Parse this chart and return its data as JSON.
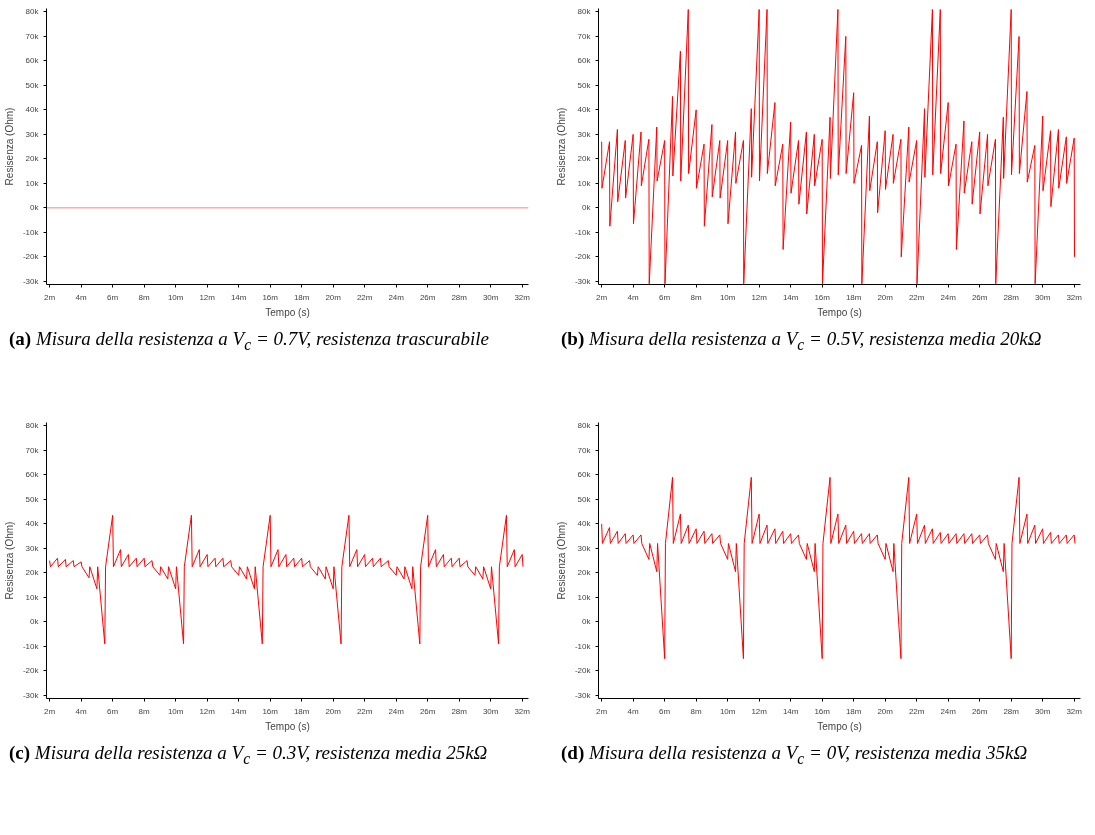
{
  "chart_data": [
    {
      "type": "line",
      "xlabel": "Tempo (s)",
      "ylabel": "Resisenza (Ohm)",
      "annotations": [
        "(a) Misura della resistenza a V$_{c}$ = 0.7V, resistenza trascurabile"
      ],
      "x": [
        1.8,
        32.4
      ],
      "series": [
        {
          "color": "#ff8080",
          "values": [
            0,
            0
          ]
        }
      ],
      "xlim": [
        1.8,
        32.4
      ],
      "ylim": [
        -31300,
        81400
      ],
      "xticks": [
        {
          "value": 2,
          "label": "2m"
        },
        {
          "value": 4,
          "label": "4m"
        },
        {
          "value": 6,
          "label": "6m"
        },
        {
          "value": 8,
          "label": "8m"
        },
        {
          "value": 10,
          "label": "10m"
        },
        {
          "value": 12,
          "label": "12m"
        },
        {
          "value": 14,
          "label": "14m"
        },
        {
          "value": 16,
          "label": "16m"
        },
        {
          "value": 18,
          "label": "18m"
        },
        {
          "value": 20,
          "label": "20m"
        },
        {
          "value": 22,
          "label": "22m"
        },
        {
          "value": 24,
          "label": "24m"
        },
        {
          "value": 26,
          "label": "26m"
        },
        {
          "value": 28,
          "label": "28m"
        },
        {
          "value": 30,
          "label": "30m"
        },
        {
          "value": 32,
          "label": "32m"
        }
      ],
      "yticks": [
        {
          "value": -30000,
          "label": "-30k"
        },
        {
          "value": -20000,
          "label": "-20k"
        },
        {
          "value": -10000,
          "label": "-10k"
        },
        {
          "value": 0,
          "label": "0k"
        },
        {
          "value": 10000,
          "label": "10k"
        },
        {
          "value": 20000,
          "label": "20k"
        },
        {
          "value": 30000,
          "label": "30k"
        },
        {
          "value": 40000,
          "label": "40k"
        },
        {
          "value": 50000,
          "label": "50k"
        },
        {
          "value": 60000,
          "label": "60k"
        },
        {
          "value": 70000,
          "label": "70k"
        },
        {
          "value": 80000,
          "label": "80k"
        }
      ]
    },
    {
      "type": "line",
      "xlabel": "Tempo (s)",
      "ylabel": "Resisenza (Ohm)",
      "annotations": [
        "(b) Misura della resistenza a V$_{c}$ = 0.5V, resistenza media 20kΩ"
      ],
      "x": [
        2,
        2.02,
        2.5,
        2.52,
        3,
        3.02,
        3.5,
        3.52,
        4,
        4.02,
        4.5,
        4.52,
        5,
        5.02,
        5.5,
        5.52,
        6,
        6.02,
        6.5,
        6.52,
        7,
        7.02,
        7.5,
        7.52,
        8,
        8.02,
        8.5,
        8.52,
        9,
        9.02,
        9.5,
        9.52,
        10,
        10.02,
        10.5,
        10.52,
        11,
        11.02,
        11.5,
        11.52,
        12,
        12.02,
        12.5,
        12.52,
        13,
        13.02,
        13.5,
        13.52,
        14,
        14.02,
        14.5,
        14.52,
        15,
        15.02,
        15.5,
        15.52,
        16,
        16.02,
        16.5,
        16.52,
        17,
        17.02,
        17.5,
        17.52,
        18,
        18.02,
        18.5,
        18.52,
        19,
        19.02,
        19.5,
        19.52,
        20,
        20.02,
        20.5,
        20.52,
        21,
        21.02,
        21.5,
        21.52,
        22,
        22.02,
        22.5,
        22.52,
        23,
        23.02,
        23.5,
        23.52,
        24,
        24.02,
        24.5,
        24.52,
        25,
        25.02,
        25.5,
        25.52,
        26,
        26.02,
        26.5,
        26.52,
        27,
        27.02,
        27.5,
        27.52,
        28,
        28.02,
        28.5,
        28.52,
        29,
        29.02,
        29.5,
        29.52,
        30,
        30.02,
        30.5,
        30.52,
        31,
        31.02,
        31.5,
        31.52,
        32,
        32.02
      ],
      "series": [
        {
          "color": "#ff0000",
          "values": [
            27000,
            8000,
            27000,
            -7500,
            32000,
            2500,
            27500,
            4000,
            30000,
            -6500,
            31000,
            9000,
            28000,
            -31000,
            33000,
            11000,
            27500,
            -31000,
            45500,
            13000,
            64000,
            11000,
            81000,
            14000,
            40000,
            8000,
            26000,
            -7500,
            34000,
            4500,
            27500,
            4000,
            27500,
            -6500,
            31000,
            10000,
            27500,
            -31000,
            40500,
            12500,
            81000,
            11000,
            81000,
            14000,
            43000,
            9000,
            26000,
            -17000,
            35000,
            6000,
            27500,
            1500,
            31000,
            -2500,
            30000,
            9000,
            28000,
            -31000,
            37000,
            12000,
            81000,
            13500,
            70000,
            14000,
            47000,
            10000,
            25500,
            -31000,
            37500,
            7000,
            27000,
            -2000,
            31500,
            7500,
            30000,
            10000,
            28000,
            -20000,
            33000,
            10500,
            27500,
            -31000,
            40500,
            12500,
            81000,
            13500,
            81000,
            14000,
            43000,
            9000,
            26000,
            -17000,
            35500,
            6000,
            27000,
            1500,
            31000,
            -2500,
            30000,
            9000,
            28000,
            -31000,
            37000,
            12000,
            81000,
            13500,
            70000,
            14000,
            47500,
            10500,
            25500,
            -31000,
            37500,
            7000,
            31500,
            500,
            32000,
            8000,
            29000,
            10000,
            28500,
            -20000
          ]
        }
      ],
      "xlim": [
        1.8,
        32.4
      ],
      "ylim": [
        -31300,
        81400
      ],
      "xticks": [
        {
          "value": 2,
          "label": "2m"
        },
        {
          "value": 4,
          "label": "4m"
        },
        {
          "value": 6,
          "label": "6m"
        },
        {
          "value": 8,
          "label": "8m"
        },
        {
          "value": 10,
          "label": "10m"
        },
        {
          "value": 12,
          "label": "12m"
        },
        {
          "value": 14,
          "label": "14m"
        },
        {
          "value": 16,
          "label": "16m"
        },
        {
          "value": 18,
          "label": "18m"
        },
        {
          "value": 20,
          "label": "20m"
        },
        {
          "value": 22,
          "label": "22m"
        },
        {
          "value": 24,
          "label": "24m"
        },
        {
          "value": 26,
          "label": "26m"
        },
        {
          "value": 28,
          "label": "28m"
        },
        {
          "value": 30,
          "label": "30m"
        },
        {
          "value": 32,
          "label": "32m"
        }
      ],
      "yticks": [
        {
          "value": -30000,
          "label": "-30k"
        },
        {
          "value": -20000,
          "label": "-20k"
        },
        {
          "value": -10000,
          "label": "-10k"
        },
        {
          "value": 0,
          "label": "0k"
        },
        {
          "value": 10000,
          "label": "10k"
        },
        {
          "value": 20000,
          "label": "20k"
        },
        {
          "value": 30000,
          "label": "30k"
        },
        {
          "value": 40000,
          "label": "40k"
        },
        {
          "value": 50000,
          "label": "50k"
        },
        {
          "value": 60000,
          "label": "60k"
        },
        {
          "value": 70000,
          "label": "70k"
        },
        {
          "value": 80000,
          "label": "80k"
        }
      ]
    },
    {
      "type": "line",
      "xlabel": "Tempo (s)",
      "ylabel": "Resisenza (Ohm)",
      "annotations": [
        "(c) Misura della resistenza a V$_{c}$ = 0.3V, resistenza media 25kΩ"
      ],
      "x": [
        2,
        2.05,
        2.5,
        2.55,
        3,
        3.05,
        3.5,
        3.55,
        4,
        4.05,
        4.5,
        4.55,
        5,
        5.05,
        5.5,
        5.55,
        6,
        6.05,
        6.5,
        6.55,
        7,
        7.05,
        7.5,
        7.55,
        8,
        8.05,
        8.5,
        8.55,
        9,
        9.05,
        9.5,
        9.55,
        10,
        10.05,
        10.5,
        10.55,
        11,
        11.05,
        11.5,
        11.55,
        12,
        12.05,
        12.5,
        12.55,
        13,
        13.05,
        13.5,
        13.55,
        14,
        14.05,
        14.5,
        14.55,
        15,
        15.05,
        15.5,
        15.55,
        16,
        16.05,
        16.5,
        16.55,
        17,
        17.05,
        17.5,
        17.55,
        18,
        18.05,
        18.5,
        18.55,
        19,
        19.05,
        19.5,
        19.55,
        20,
        20.05,
        20.5,
        20.55,
        21,
        21.05,
        21.5,
        21.55,
        22,
        22.05,
        22.5,
        22.55,
        23,
        23.05,
        23.5,
        23.55,
        24,
        24.05,
        24.5,
        24.55,
        25,
        25.05,
        25.5,
        25.55,
        26,
        26.05,
        26.5,
        26.55,
        27,
        27.05,
        27.5,
        27.55,
        28,
        28.05,
        28.5,
        28.55,
        29,
        29.05,
        29.5,
        29.55,
        30,
        30.05,
        30.5,
        30.55,
        31,
        31.05,
        31.5,
        31.55,
        32,
        32.05
      ],
      "series": [
        {
          "color": "#ff0000",
          "values": [
            25000,
            22500,
            26000,
            22500,
            25500,
            22500,
            25000,
            22500,
            24500,
            22500,
            18000,
            22500,
            13500,
            22500,
            -9000,
            22500,
            43500,
            22500,
            29500,
            22500,
            27500,
            22500,
            26000,
            22500,
            26000,
            22500,
            25000,
            22500,
            19000,
            22500,
            17500,
            22500,
            13500,
            22500,
            -9000,
            22500,
            43500,
            22500,
            29500,
            22500,
            27500,
            22500,
            26000,
            22500,
            26000,
            22500,
            25000,
            22500,
            19000,
            22500,
            17500,
            22500,
            13500,
            22500,
            -9000,
            22500,
            43500,
            22500,
            29500,
            22500,
            27500,
            22500,
            26000,
            22500,
            26000,
            22500,
            25000,
            22500,
            19000,
            22500,
            17500,
            22500,
            13500,
            22500,
            -9000,
            22500,
            43500,
            22500,
            29500,
            22500,
            27500,
            22500,
            26000,
            22500,
            26000,
            22500,
            25000,
            22500,
            19000,
            22500,
            17500,
            22500,
            13500,
            22500,
            -9000,
            22500,
            43500,
            22500,
            29500,
            22500,
            27500,
            22500,
            26000,
            22500,
            26000,
            22500,
            25000,
            22500,
            19000,
            22500,
            17500,
            22500,
            13500,
            22500,
            -9000,
            22500,
            43500,
            22500,
            29500,
            22500,
            27500,
            22500
          ]
        }
      ],
      "xlim": [
        1.8,
        32.4
      ],
      "ylim": [
        -31300,
        81400
      ],
      "xticks": [
        {
          "value": 2,
          "label": "2m"
        },
        {
          "value": 4,
          "label": "4m"
        },
        {
          "value": 6,
          "label": "6m"
        },
        {
          "value": 8,
          "label": "8m"
        },
        {
          "value": 10,
          "label": "10m"
        },
        {
          "value": 12,
          "label": "12m"
        },
        {
          "value": 14,
          "label": "14m"
        },
        {
          "value": 16,
          "label": "16m"
        },
        {
          "value": 18,
          "label": "18m"
        },
        {
          "value": 20,
          "label": "20m"
        },
        {
          "value": 22,
          "label": "22m"
        },
        {
          "value": 24,
          "label": "24m"
        },
        {
          "value": 26,
          "label": "26m"
        },
        {
          "value": 28,
          "label": "28m"
        },
        {
          "value": 30,
          "label": "30m"
        },
        {
          "value": 32,
          "label": "32m"
        }
      ],
      "yticks": [
        {
          "value": -30000,
          "label": "-30k"
        },
        {
          "value": -20000,
          "label": "-20k"
        },
        {
          "value": -10000,
          "label": "-10k"
        },
        {
          "value": 0,
          "label": "0k"
        },
        {
          "value": 10000,
          "label": "10k"
        },
        {
          "value": 20000,
          "label": "20k"
        },
        {
          "value": 30000,
          "label": "30k"
        },
        {
          "value": 40000,
          "label": "40k"
        },
        {
          "value": 50000,
          "label": "50k"
        },
        {
          "value": 60000,
          "label": "60k"
        },
        {
          "value": 70000,
          "label": "70k"
        },
        {
          "value": 80000,
          "label": "80k"
        }
      ]
    },
    {
      "type": "line",
      "xlabel": "Tempo (s)",
      "ylabel": "Resisenza (Ohm)",
      "annotations": [
        "(d) Misura della resistenza a V$_{c}$ = 0V, resistenza media 35kΩ"
      ],
      "x": [
        2,
        2.05,
        2.5,
        2.55,
        3,
        3.05,
        3.5,
        3.55,
        4,
        4.05,
        4.5,
        4.55,
        5,
        5.05,
        5.5,
        5.55,
        6,
        6.05,
        6.5,
        6.55,
        7,
        7.05,
        7.5,
        7.55,
        8,
        8.05,
        8.5,
        8.55,
        9,
        9.05,
        9.5,
        9.55,
        10,
        10.05,
        10.5,
        10.55,
        11,
        11.05,
        11.5,
        11.55,
        12,
        12.05,
        12.5,
        12.55,
        13,
        13.05,
        13.5,
        13.55,
        14,
        14.05,
        14.5,
        14.55,
        15,
        15.05,
        15.5,
        15.55,
        16,
        16.05,
        16.5,
        16.55,
        17,
        17.05,
        17.5,
        17.55,
        18,
        18.05,
        18.5,
        18.55,
        19,
        19.05,
        19.5,
        19.55,
        20,
        20.05,
        20.5,
        20.55,
        21,
        21.05,
        21.5,
        21.55,
        22,
        22.05,
        22.5,
        22.55,
        23,
        23.05,
        23.5,
        23.55,
        24,
        24.05,
        24.5,
        24.55,
        25,
        25.05,
        25.5,
        25.55,
        26,
        26.05,
        26.5,
        26.55,
        27,
        27.05,
        27.5,
        27.55,
        28,
        28.05,
        28.5,
        28.55,
        29,
        29.05,
        29.5,
        29.55,
        30,
        30.05,
        30.5,
        30.55,
        31,
        31.05,
        31.5,
        31.55,
        32,
        32.05
      ],
      "series": [
        {
          "color": "#ff0000",
          "values": [
            40000,
            32000,
            38500,
            32000,
            37000,
            32000,
            36000,
            32000,
            35500,
            32000,
            35500,
            32000,
            25500,
            32000,
            20500,
            32000,
            -15000,
            32000,
            59000,
            32000,
            44000,
            32000,
            39500,
            32000,
            38000,
            32000,
            37000,
            32000,
            36000,
            32000,
            35500,
            32000,
            25500,
            32000,
            20500,
            32000,
            -15000,
            32000,
            59000,
            32000,
            44000,
            32000,
            39500,
            32000,
            38000,
            32000,
            37000,
            32000,
            36000,
            32000,
            35500,
            32000,
            25500,
            32000,
            20500,
            32000,
            -15000,
            32000,
            59000,
            32000,
            44000,
            32000,
            39500,
            32000,
            37000,
            32000,
            36000,
            32000,
            36000,
            32000,
            35500,
            32000,
            25500,
            32000,
            20500,
            32000,
            -15000,
            32000,
            59000,
            32000,
            44000,
            32000,
            39500,
            32000,
            38000,
            32000,
            36500,
            32000,
            36000,
            32000,
            36000,
            32000,
            36000,
            32000,
            36000,
            32000,
            35500,
            32000,
            35500,
            32000,
            25500,
            32000,
            20500,
            32000,
            -15000,
            32000,
            59000,
            32000,
            44000,
            32000,
            39500,
            32000,
            38000,
            32000,
            36500,
            32000,
            35500,
            32000,
            35500,
            32000,
            35500,
            32000
          ]
        }
      ],
      "xlim": [
        1.8,
        32.4
      ],
      "ylim": [
        -31300,
        81400
      ],
      "xticks": [
        {
          "value": 2,
          "label": "2m"
        },
        {
          "value": 4,
          "label": "4m"
        },
        {
          "value": 6,
          "label": "6m"
        },
        {
          "value": 8,
          "label": "8m"
        },
        {
          "value": 10,
          "label": "10m"
        },
        {
          "value": 12,
          "label": "12m"
        },
        {
          "value": 14,
          "label": "14m"
        },
        {
          "value": 16,
          "label": "16m"
        },
        {
          "value": 18,
          "label": "18m"
        },
        {
          "value": 20,
          "label": "20m"
        },
        {
          "value": 22,
          "label": "22m"
        },
        {
          "value": 24,
          "label": "24m"
        },
        {
          "value": 26,
          "label": "26m"
        },
        {
          "value": 28,
          "label": "28m"
        },
        {
          "value": 30,
          "label": "30m"
        },
        {
          "value": 32,
          "label": "32m"
        }
      ],
      "yticks": [
        {
          "value": -30000,
          "label": "-30k"
        },
        {
          "value": -20000,
          "label": "-20k"
        },
        {
          "value": -10000,
          "label": "-10k"
        },
        {
          "value": 0,
          "label": "0k"
        },
        {
          "value": 10000,
          "label": "10k"
        },
        {
          "value": 20000,
          "label": "20k"
        },
        {
          "value": 30000,
          "label": "30k"
        },
        {
          "value": 40000,
          "label": "40k"
        },
        {
          "value": 50000,
          "label": "50k"
        },
        {
          "value": 60000,
          "label": "60k"
        },
        {
          "value": 70000,
          "label": "70k"
        },
        {
          "value": 80000,
          "label": "80k"
        }
      ]
    }
  ]
}
